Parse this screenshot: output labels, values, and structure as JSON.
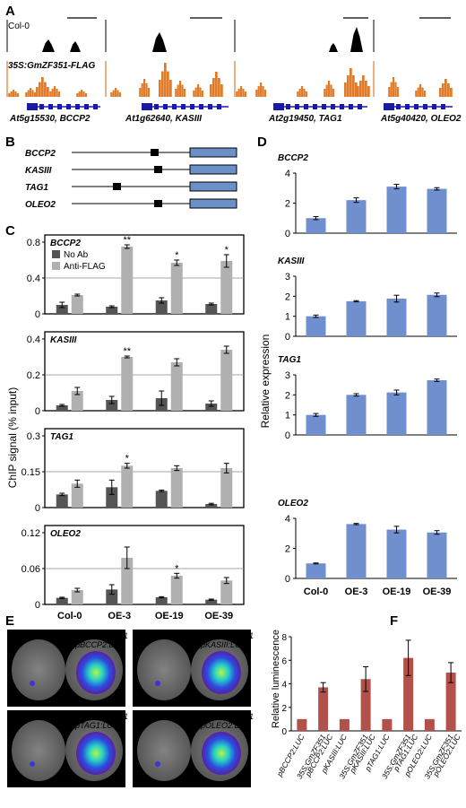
{
  "panels": {
    "A": "A",
    "B": "B",
    "C": "C",
    "D": "D",
    "E": "E",
    "F": "F"
  },
  "panelA": {
    "track_control": "Col-0",
    "track_oe": "35S:GmZF351-FLAG",
    "loci": [
      {
        "id": "At5g15530",
        "gene": "BCCP2",
        "label": "At5g15530, BCCP2"
      },
      {
        "id": "At1g62640",
        "gene": "KASIII",
        "label": "At1g62640, KASIII"
      },
      {
        "id": "At2g19450",
        "gene": "TAG1",
        "label": "At2g19450, TAG1"
      },
      {
        "id": "At5g40420",
        "gene": "OLEO2",
        "label": "At5g40420, OLEO2"
      }
    ],
    "colors": {
      "control": "#000000",
      "oe": "#e07b2a",
      "gene_model": "#1a1aa8"
    }
  },
  "panelB": {
    "genes": [
      "BCCP2",
      "KASIII",
      "TAG1",
      "OLEO2"
    ],
    "colors": {
      "cds_box": "#6b8fc7",
      "motif": "#000000"
    }
  },
  "chart_data": [
    {
      "panel": "C",
      "type": "bar",
      "ylabel": "ChIP signal (% input)",
      "categories": [
        "Col-0",
        "OE-3",
        "OE-19",
        "OE-39"
      ],
      "legend": [
        "No Ab",
        "Anti-FLAG"
      ],
      "colors": {
        "No Ab": "#555555",
        "Anti-FLAG": "#b0b0b0"
      },
      "subplots": [
        {
          "gene": "BCCP2",
          "ylim": [
            0,
            0.8
          ],
          "yticks": [
            "0",
            "0.4",
            "0.8"
          ],
          "yticks_num": [
            0,
            0.4,
            0.8
          ],
          "series": [
            {
              "name": "No Ab",
              "values": [
                0.1,
                0.08,
                0.15,
                0.11
              ],
              "err": [
                0.03,
                0.01,
                0.03,
                0.01
              ]
            },
            {
              "name": "Anti-FLAG",
              "values": [
                0.21,
                0.75,
                0.57,
                0.59
              ],
              "err": [
                0.01,
                0.02,
                0.03,
                0.07
              ]
            }
          ],
          "sig": [
            "",
            "**",
            "*",
            "*"
          ],
          "hline": 0.4
        },
        {
          "gene": "KASIII",
          "ylim": [
            0,
            0.4
          ],
          "yticks": [
            "0",
            "0.2",
            "0.4"
          ],
          "yticks_num": [
            0,
            0.2,
            0.4
          ],
          "series": [
            {
              "name": "No Ab",
              "values": [
                0.03,
                0.06,
                0.07,
                0.04
              ],
              "err": [
                0.005,
                0.02,
                0.04,
                0.015
              ]
            },
            {
              "name": "Anti-FLAG",
              "values": [
                0.11,
                0.3,
                0.27,
                0.34
              ],
              "err": [
                0.02,
                0.005,
                0.02,
                0.02
              ]
            }
          ],
          "sig": [
            "",
            "**",
            "",
            ""
          ],
          "hline": 0.2
        },
        {
          "gene": "TAG1",
          "ylim": [
            0,
            0.3
          ],
          "yticks": [
            "0",
            "0.15",
            "0.3"
          ],
          "yticks_num": [
            0,
            0.15,
            0.3
          ],
          "series": [
            {
              "name": "No Ab",
              "values": [
                0.055,
                0.085,
                0.07,
                0.015
              ],
              "err": [
                0.005,
                0.03,
                0.003,
                0.003
              ]
            },
            {
              "name": "Anti-FLAG",
              "values": [
                0.1,
                0.175,
                0.165,
                0.165
              ],
              "err": [
                0.015,
                0.01,
                0.01,
                0.02
              ]
            }
          ],
          "sig": [
            "",
            "*",
            "",
            ""
          ],
          "hline": 0.15
        },
        {
          "gene": "OLEO2",
          "ylim": [
            0,
            0.12
          ],
          "yticks": [
            "0",
            "0.06",
            "0.12"
          ],
          "yticks_num": [
            0,
            0.06,
            0.12
          ],
          "series": [
            {
              "name": "No Ab",
              "values": [
                0.011,
                0.025,
                0.012,
                0.008
              ],
              "err": [
                0.001,
                0.008,
                0.001,
                0.001
              ]
            },
            {
              "name": "Anti-FLAG",
              "values": [
                0.024,
                0.078,
                0.048,
                0.04
              ],
              "err": [
                0.003,
                0.018,
                0.004,
                0.005
              ]
            }
          ],
          "sig": [
            "",
            "",
            "*",
            ""
          ],
          "hline": 0.06
        }
      ]
    },
    {
      "panel": "D",
      "type": "bar",
      "ylabel": "Relative expression",
      "categories": [
        "Col-0",
        "OE-3",
        "OE-19",
        "OE-39"
      ],
      "color": "#6f8fcf",
      "subplots": [
        {
          "gene": "BCCP2",
          "ylim": [
            0,
            4
          ],
          "yticks": [
            "0",
            "2",
            "4"
          ],
          "values": [
            1.0,
            2.2,
            3.1,
            2.95
          ],
          "err": [
            0.1,
            0.15,
            0.15,
            0.08
          ]
        },
        {
          "gene": "KASIII",
          "ylim": [
            0,
            3
          ],
          "yticks": [
            "0",
            "1",
            "2",
            "3"
          ],
          "values": [
            1.0,
            1.75,
            1.88,
            2.07
          ],
          "err": [
            0.06,
            0.03,
            0.17,
            0.09
          ]
        },
        {
          "gene": "TAG1",
          "ylim": [
            0,
            3
          ],
          "yticks": [
            "0",
            "1",
            "2",
            "3"
          ],
          "values": [
            1.0,
            2.0,
            2.12,
            2.73
          ],
          "err": [
            0.07,
            0.06,
            0.12,
            0.06
          ]
        },
        {
          "gene": "OLEO2",
          "ylim": [
            0,
            4
          ],
          "yticks": [
            "0",
            "2",
            "4"
          ],
          "values": [
            1.0,
            3.62,
            3.25,
            3.06
          ],
          "err": [
            0.03,
            0.04,
            0.22,
            0.12
          ]
        }
      ]
    },
    {
      "panel": "F",
      "type": "bar",
      "ylabel": "Relative luminescence",
      "ylim": [
        0,
        8
      ],
      "yticks": [
        "0",
        "2",
        "4",
        "6",
        "8"
      ],
      "color": "#b4504a",
      "categories": [
        "pBCCP2:LUC",
        "35S:GmZF351 pBCCP2:LUC",
        "pKASIII:LUC",
        "35S:GmZF351 pKASIII:LUC",
        "pTAG1:LUC",
        "35S:GmZF351 pTAG1:LUC",
        "pOLEO2:LUC",
        "35S:GmZF351 pOLEO2:LUC"
      ],
      "values": [
        1.0,
        3.7,
        1.0,
        4.4,
        1.0,
        6.2,
        1.0,
        4.95
      ],
      "err": [
        0,
        0.4,
        0,
        1.05,
        0,
        1.5,
        0,
        0.85
      ]
    }
  ],
  "panelE": {
    "images": [
      {
        "left": "pBCCP2:LUC",
        "right": "35S:GmZF351 pBCCP2:LUC",
        "right1": "35S:GmZF351",
        "right2": "pBCCP2:LUC"
      },
      {
        "left": "pKASIII:LUC",
        "right": "35S:GmZF351 pKASIII:LUC",
        "right1": "35S:GmZF351",
        "right2": "pKASIII:LUC"
      },
      {
        "left": "pTAG1:LUC",
        "right": "35S:GmZF351 pTAG1:LUC",
        "right1": "35S:GmZF351",
        "right2": "pTAG1:LUC"
      },
      {
        "left": "pOLEO2:LUC",
        "right": "35S:GmZF351 pOLEO2:LUC",
        "right1": "35S:GmZF351",
        "right2": "pOLEO2:LUC"
      }
    ]
  }
}
